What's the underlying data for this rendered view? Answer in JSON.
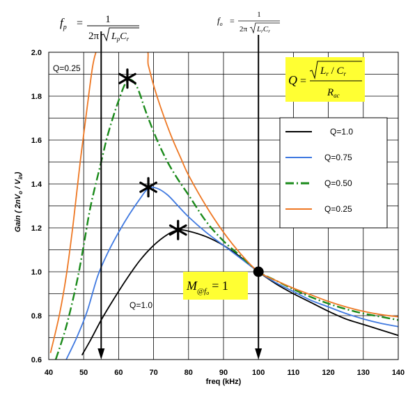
{
  "chart_data": {
    "type": "line",
    "xlabel": "freq (kHz)",
    "ylabel": "Gain ( 2nV",
    "ylabel_sub1": "o",
    "ylabel_mid": " / V",
    "ylabel_sub2": "in",
    "ylabel_end": ")",
    "xlim": [
      40,
      140
    ],
    "ylim": [
      0.6,
      2.0
    ],
    "xticks": [
      40,
      50,
      60,
      70,
      80,
      90,
      100,
      110,
      120,
      130,
      140
    ],
    "yticks": [
      "0.6",
      "0.8",
      "1.0",
      "1.2",
      "1.4",
      "1.6",
      "1.8",
      "2.0"
    ],
    "grid": true,
    "legend_position": "right",
    "series": [
      {
        "name": "Q=1.0",
        "color": "#000000",
        "dash": "solid",
        "x": [
          49.5,
          52,
          55,
          58,
          62,
          66,
          70,
          74,
          77,
          80,
          85,
          90,
          95,
          100,
          105,
          110,
          115,
          120,
          125,
          130,
          135,
          140
        ],
        "y": [
          0.62,
          0.69,
          0.78,
          0.86,
          0.96,
          1.05,
          1.12,
          1.17,
          1.19,
          1.185,
          1.16,
          1.12,
          1.065,
          1.0,
          0.945,
          0.9,
          0.86,
          0.82,
          0.785,
          0.76,
          0.735,
          0.71
        ]
      },
      {
        "name": "Q=0.75",
        "color": "#3f79e0",
        "dash": "solid",
        "x": [
          45,
          48,
          51,
          54,
          57,
          60,
          63,
          66,
          68.5,
          71,
          74,
          77,
          80,
          85,
          90,
          95,
          100,
          105,
          110,
          115,
          120,
          125,
          130,
          135,
          140
        ],
        "y": [
          0.6,
          0.7,
          0.82,
          0.98,
          1.09,
          1.18,
          1.26,
          1.33,
          1.38,
          1.38,
          1.35,
          1.3,
          1.25,
          1.18,
          1.12,
          1.06,
          1.0,
          0.95,
          0.91,
          0.87,
          0.84,
          0.81,
          0.785,
          0.765,
          0.75
        ]
      },
      {
        "name": "Q=0.50",
        "color": "#1a8a1a",
        "dash": "12,4,2,4",
        "x": [
          42,
          45,
          48,
          50,
          52,
          55,
          57,
          60,
          62.5,
          65,
          68,
          71,
          74,
          77,
          80,
          85,
          90,
          95,
          100,
          105,
          110,
          115,
          120,
          125,
          130,
          135,
          140
        ],
        "y": [
          0.6,
          0.75,
          0.95,
          1.12,
          1.3,
          1.5,
          1.63,
          1.78,
          1.87,
          1.85,
          1.72,
          1.6,
          1.5,
          1.42,
          1.35,
          1.23,
          1.14,
          1.07,
          1.0,
          0.96,
          0.92,
          0.885,
          0.855,
          0.83,
          0.81,
          0.795,
          0.78
        ]
      },
      {
        "name": "Q=0.25",
        "color": "#ee7722",
        "dash": "solid",
        "x": [
          40.5,
          43,
          45,
          47,
          49,
          51,
          52.5,
          53.5,
          54.5,
          67,
          68.5,
          70,
          72,
          75,
          78,
          80,
          85,
          90,
          95,
          100,
          105,
          110,
          115,
          120,
          125,
          130,
          135,
          140
        ],
        "y": [
          0.63,
          0.8,
          0.98,
          1.22,
          1.5,
          1.75,
          1.93,
          2.0,
          2.03,
          2.03,
          1.94,
          1.85,
          1.75,
          1.62,
          1.51,
          1.44,
          1.3,
          1.18,
          1.08,
          1.0,
          0.96,
          0.925,
          0.895,
          0.865,
          0.84,
          0.82,
          0.805,
          0.795
        ]
      }
    ],
    "peaks": [
      {
        "x": 62.5,
        "y": 1.88
      },
      {
        "x": 68.5,
        "y": 1.385
      },
      {
        "x": 77,
        "y": 1.19
      }
    ],
    "operating_point": {
      "x": 100,
      "y": 1.0
    },
    "vlines": [
      {
        "x": 55,
        "name": "fp"
      },
      {
        "x": 100,
        "name": "fo"
      }
    ],
    "annotations": {
      "q025_label": "Q=0.25",
      "q10_label": "Q=1.0"
    },
    "formulas": {
      "fp": {
        "lhs": "f",
        "lhs_sub": "p",
        "num": "1",
        "den_prefix": "2π",
        "den_rad": "L",
        "den_rad_sub1": "p",
        "den_rad_mid": "C",
        "den_rad_sub2": "r"
      },
      "fo": {
        "lhs": "f",
        "lhs_sub": "o",
        "num": "1",
        "den_prefix": "2π",
        "den_rad": "L",
        "den_rad_sub1": "r",
        "den_rad_mid": "C",
        "den_rad_sub2": "r"
      },
      "q": {
        "lhs": "Q",
        "num_a": "L",
        "num_a_sub": "r",
        "num_b": "C",
        "num_b_sub": "r",
        "den": "R",
        "den_sub": "ac"
      },
      "m": {
        "lhs": "M",
        "sub_at": "@",
        "sub_f": "f",
        "sub_f_sub": "o",
        "rhs": "= 1"
      }
    },
    "colors": {
      "highlight_box": "#ffff33"
    }
  }
}
